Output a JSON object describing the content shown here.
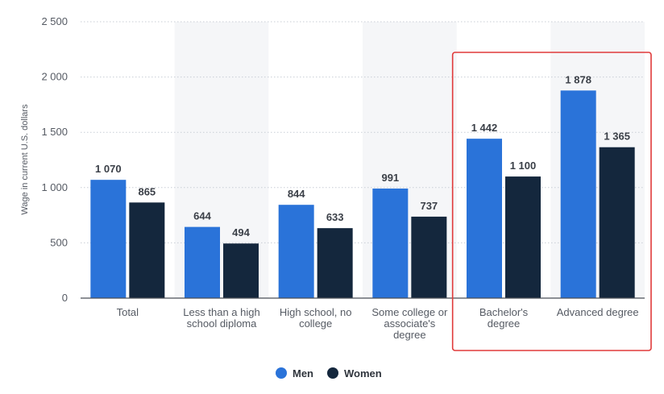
{
  "chart_data": {
    "type": "bar",
    "categories": [
      [
        "Total"
      ],
      [
        "Less than a high",
        "school diploma"
      ],
      [
        "High school, no",
        "college"
      ],
      [
        "Some college or",
        "associate's",
        "degree"
      ],
      [
        "Bachelor's",
        "degree"
      ],
      [
        "Advanced degree"
      ]
    ],
    "series": [
      {
        "name": "Men",
        "values": [
          1070,
          644,
          844,
          991,
          1442,
          1878
        ],
        "labels": [
          "1 070",
          "644",
          "844",
          "991",
          "1 442",
          "1 878"
        ],
        "color": "#2a73d9"
      },
      {
        "name": "Women",
        "values": [
          865,
          494,
          633,
          737,
          1100,
          1365
        ],
        "labels": [
          "865",
          "494",
          "633",
          "737",
          "1 100",
          "1 365"
        ],
        "color": "#14273d"
      }
    ],
    "ylabel": "Wage in current U.S. dollars",
    "ylim": [
      0,
      2500
    ],
    "yticks": [
      0,
      500,
      1000,
      1500,
      2000,
      2500
    ],
    "ytick_labels": [
      "0",
      "500",
      "1 000",
      "1 500",
      "2 000",
      "2 500"
    ],
    "grid": true,
    "legend_position": "bottom-center",
    "highlight_categories": [
      4,
      5
    ],
    "highlight_color": "#e03a3a"
  }
}
